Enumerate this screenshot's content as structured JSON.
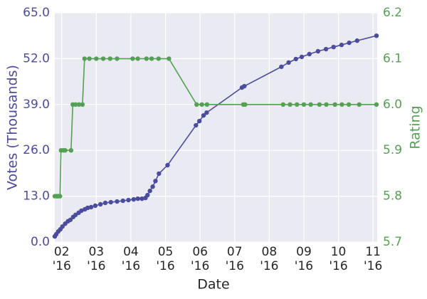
{
  "chart_data": {
    "type": "line",
    "x_label": "Date",
    "y_label": "Votes (Thousands)",
    "y2_label": "Rating",
    "xlim": [
      1.8,
      11.12
    ],
    "xticks": [
      {
        "value": 2,
        "label": "02\n'16"
      },
      {
        "value": 3,
        "label": "03\n'16"
      },
      {
        "value": 4,
        "label": "04\n'16"
      },
      {
        "value": 5,
        "label": "05\n'16"
      },
      {
        "value": 6,
        "label": "06\n'16"
      },
      {
        "value": 7,
        "label": "07\n'16"
      },
      {
        "value": 8,
        "label": "08\n'16"
      },
      {
        "value": 9,
        "label": "09\n'16"
      },
      {
        "value": 10,
        "label": "10\n'16"
      },
      {
        "value": 11,
        "label": "11\n'16"
      }
    ],
    "ylim": [
      0,
      65
    ],
    "yticks": [
      {
        "value": 0,
        "label": "0.0"
      },
      {
        "value": 13,
        "label": "13.0"
      },
      {
        "value": 26,
        "label": "26.0"
      },
      {
        "value": 39,
        "label": "39.0"
      },
      {
        "value": 52,
        "label": "52.0"
      },
      {
        "value": 65,
        "label": "65.0"
      }
    ],
    "y2lim": [
      5.7,
      6.2
    ],
    "y2ticks": [
      5.7,
      5.8,
      5.9,
      {
        "value": 6,
        "label": "6.0"
      },
      6.1,
      6.2
    ],
    "grid": true,
    "series": [
      {
        "color": "#4c4c9c",
        "x": [
          1.8,
          1.84,
          1.9,
          1.96,
          2.02,
          2.1,
          2.18,
          2.25,
          2.33,
          2.4,
          2.49,
          2.57,
          2.67,
          2.75,
          2.85,
          2.97,
          3.12,
          3.26,
          3.42,
          3.6,
          3.77,
          3.93,
          4.08,
          4.2,
          4.32,
          4.42,
          4.48,
          4.55,
          4.63,
          4.71,
          4.81,
          5.06,
          5.88,
          5.98,
          6.1,
          6.19,
          7.21,
          7.28,
          8.35,
          8.56,
          8.77,
          8.94,
          9.16,
          9.41,
          9.64,
          9.86,
          10.09,
          10.31,
          10.54,
          11.1
        ],
        "values": [
          1.6,
          2.2,
          3.0,
          3.6,
          4.4,
          5.2,
          5.9,
          6.3,
          7.1,
          7.7,
          8.3,
          8.9,
          9.3,
          9.7,
          9.9,
          10.3,
          10.7,
          11.1,
          11.3,
          11.5,
          11.7,
          11.9,
          12.1,
          12.3,
          12.3,
          12.5,
          13.3,
          14.5,
          15.7,
          17.3,
          19.4,
          21.8,
          33.1,
          34.3,
          35.9,
          36.7,
          43.8,
          44.2,
          49.7,
          50.9,
          51.9,
          52.5,
          53.3,
          54.1,
          54.7,
          55.3,
          55.9,
          56.5,
          57.1,
          58.5
        ]
      },
      {
        "color": "#55a055",
        "axis": "y2",
        "x": [
          1.8,
          1.85,
          1.9,
          1.95,
          1.98,
          2.05,
          2.1,
          2.27,
          2.32,
          2.4,
          2.5,
          2.6,
          2.66,
          2.8,
          3.0,
          3.2,
          3.4,
          3.6,
          4.05,
          4.2,
          4.45,
          4.6,
          4.8,
          5.1,
          5.9,
          6.05,
          6.2,
          7.25,
          7.3,
          8.4,
          8.6,
          8.8,
          9.0,
          9.2,
          9.45,
          9.65,
          9.9,
          10.1,
          10.3,
          10.6,
          11.1
        ],
        "values": [
          5.8,
          5.8,
          5.8,
          5.8,
          5.9,
          5.9,
          5.9,
          5.9,
          6.0,
          6.0,
          6.0,
          6.0,
          6.1,
          6.1,
          6.1,
          6.1,
          6.1,
          6.1,
          6.1,
          6.1,
          6.1,
          6.1,
          6.1,
          6.1,
          6.0,
          6.0,
          6.0,
          6.0,
          6.0,
          6.0,
          6.0,
          6.0,
          6.0,
          6.0,
          6.0,
          6.0,
          6.0,
          6.0,
          6.0,
          6.0,
          6.0
        ]
      }
    ]
  }
}
